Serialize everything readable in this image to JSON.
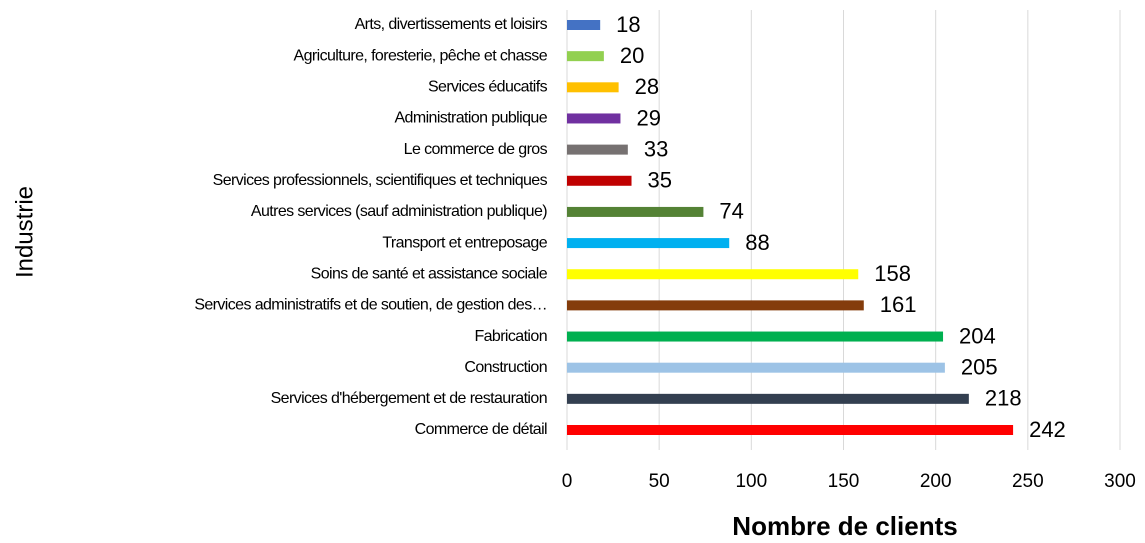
{
  "chart_data": {
    "type": "bar",
    "orientation": "horizontal",
    "categories": [
      "Arts, divertissements et loisirs",
      "Agriculture, foresterie, pêche et chasse",
      "Services éducatifs",
      "Administration publique",
      "Le commerce de gros",
      "Services professionnels, scientifiques et techniques",
      "Autres services (sauf administration publique)",
      "Transport et entreposage",
      "Soins de santé et assistance sociale",
      "Services administratifs et de soutien, de gestion des…",
      "Fabrication",
      "Construction",
      "Services d'hébergement et de restauration",
      "Commerce de détail"
    ],
    "values": [
      18,
      20,
      28,
      29,
      33,
      35,
      74,
      88,
      158,
      161,
      204,
      205,
      218,
      242
    ],
    "colors": [
      "#4472c4",
      "#92d050",
      "#ffc000",
      "#7030a0",
      "#767171",
      "#c00000",
      "#548235",
      "#00b0f0",
      "#ffff00",
      "#843c0c",
      "#00b050",
      "#9dc3e6",
      "#333f50",
      "#ff0000"
    ],
    "xlabel": "Nombre de clients",
    "ylabel": "Industrie",
    "xlim": [
      0,
      300
    ],
    "xticks": [
      0,
      50,
      100,
      150,
      200,
      250,
      300
    ],
    "grid": true
  }
}
